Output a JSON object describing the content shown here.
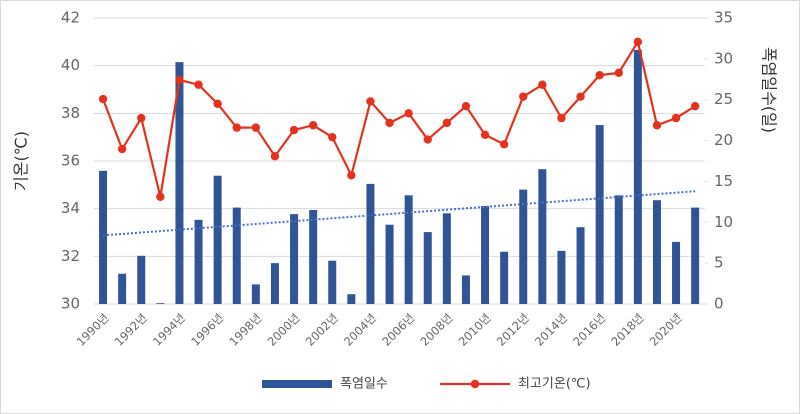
{
  "chart_data": {
    "type": "bar-line",
    "y_label": "기온(℃)",
    "y2_label": "폭염일수(일)",
    "categories": [
      "1990년",
      null,
      "1992년",
      null,
      "1994년",
      null,
      "1996년",
      null,
      "1998년",
      null,
      "2000년",
      null,
      "2002년",
      null,
      "2004년",
      null,
      "2006년",
      null,
      "2008년",
      null,
      "2010년",
      null,
      "2012년",
      null,
      "2014년",
      null,
      "2016년",
      null,
      "2018년",
      null,
      "2020년",
      null
    ],
    "series": [
      {
        "name": "폭염일수",
        "type": "bar",
        "axis": "y2",
        "color": "#2f5597",
        "values": [
          16.3,
          3.7,
          5.9,
          0.1,
          29.6,
          10.3,
          15.7,
          11.8,
          2.4,
          5.0,
          11.0,
          11.5,
          5.3,
          1.2,
          14.7,
          9.7,
          13.3,
          8.8,
          11.1,
          3.5,
          12.0,
          6.4,
          14.0,
          16.5,
          6.5,
          9.4,
          21.9,
          13.3,
          31.1,
          12.7,
          7.6,
          11.8
        ]
      },
      {
        "name": "최고기온(℃)",
        "type": "line",
        "axis": "y",
        "color": "#e5321e",
        "values": [
          38.6,
          36.5,
          37.8,
          34.5,
          39.4,
          39.2,
          38.4,
          37.4,
          37.4,
          36.2,
          37.3,
          37.5,
          37.0,
          35.4,
          38.5,
          37.6,
          38.0,
          36.9,
          37.6,
          38.3,
          37.1,
          36.7,
          38.7,
          39.2,
          37.8,
          38.7,
          39.6,
          39.7,
          41.0,
          37.5,
          37.8,
          38.3
        ]
      }
    ],
    "trendline": {
      "axis": "y2",
      "color": "#4472c4",
      "values": [
        8.4,
        13.8
      ]
    },
    "ylim": [
      30,
      42
    ],
    "yticks": [
      30,
      32,
      34,
      36,
      38,
      40,
      42
    ],
    "y2lim": [
      0,
      35
    ],
    "y2ticks": [
      0,
      5,
      10,
      15,
      20,
      25,
      30,
      35
    ],
    "grid": true
  }
}
